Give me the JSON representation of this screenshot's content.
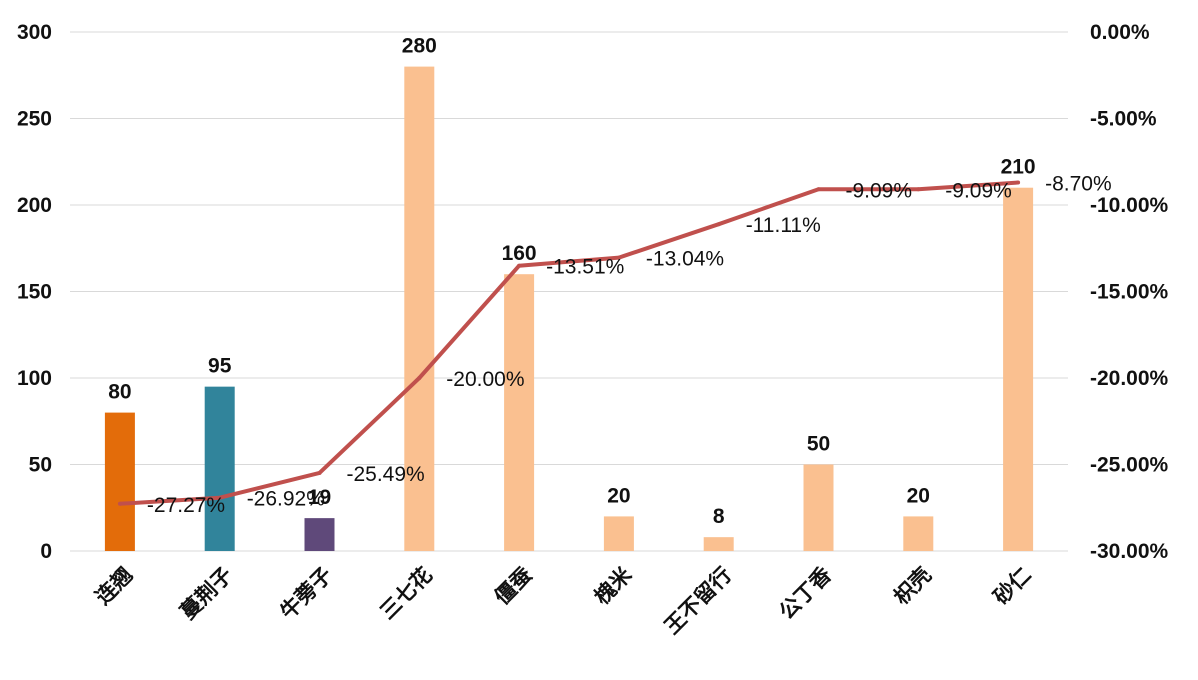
{
  "chart_data": {
    "type": "bar",
    "categories": [
      "连翘",
      "蔓荆子",
      "牛蒡子",
      "三七花",
      "僵蚕",
      "槐米",
      "王不留行",
      "公丁香",
      "枳壳",
      "砂仁"
    ],
    "series": [
      {
        "type": "bar",
        "axis": "left",
        "values": [
          80,
          95,
          19,
          280,
          160,
          20,
          8,
          50,
          20,
          210
        ],
        "colors": [
          "#e36c0a",
          "#31849b",
          "#5f497a",
          "#fac090",
          "#fac090",
          "#fac090",
          "#fac090",
          "#fac090",
          "#fac090",
          "#fac090"
        ]
      },
      {
        "type": "line",
        "axis": "right",
        "values": [
          -27.27,
          -26.92,
          -25.49,
          -20.0,
          -13.51,
          -13.04,
          -11.11,
          -9.09,
          -9.09,
          -8.7
        ],
        "labels": [
          "-27.27%",
          "-26.92%",
          "-25.49%",
          "-20.00%",
          "-13.51%",
          "-13.04%",
          "-11.11%",
          "-9.09%",
          "-9.09%",
          "-8.70%"
        ],
        "color": "#c0504d"
      }
    ],
    "ylim": [
      0,
      300
    ],
    "yticks": [
      "0",
      "50",
      "100",
      "150",
      "200",
      "250",
      "300"
    ],
    "y2lim": [
      -30,
      0
    ],
    "y2ticks": [
      "-30.00%",
      "-25.00%",
      "-20.00%",
      "-15.00%",
      "-10.00%",
      "-5.00%",
      "0.00%"
    ],
    "grid": true,
    "legend": "none"
  }
}
